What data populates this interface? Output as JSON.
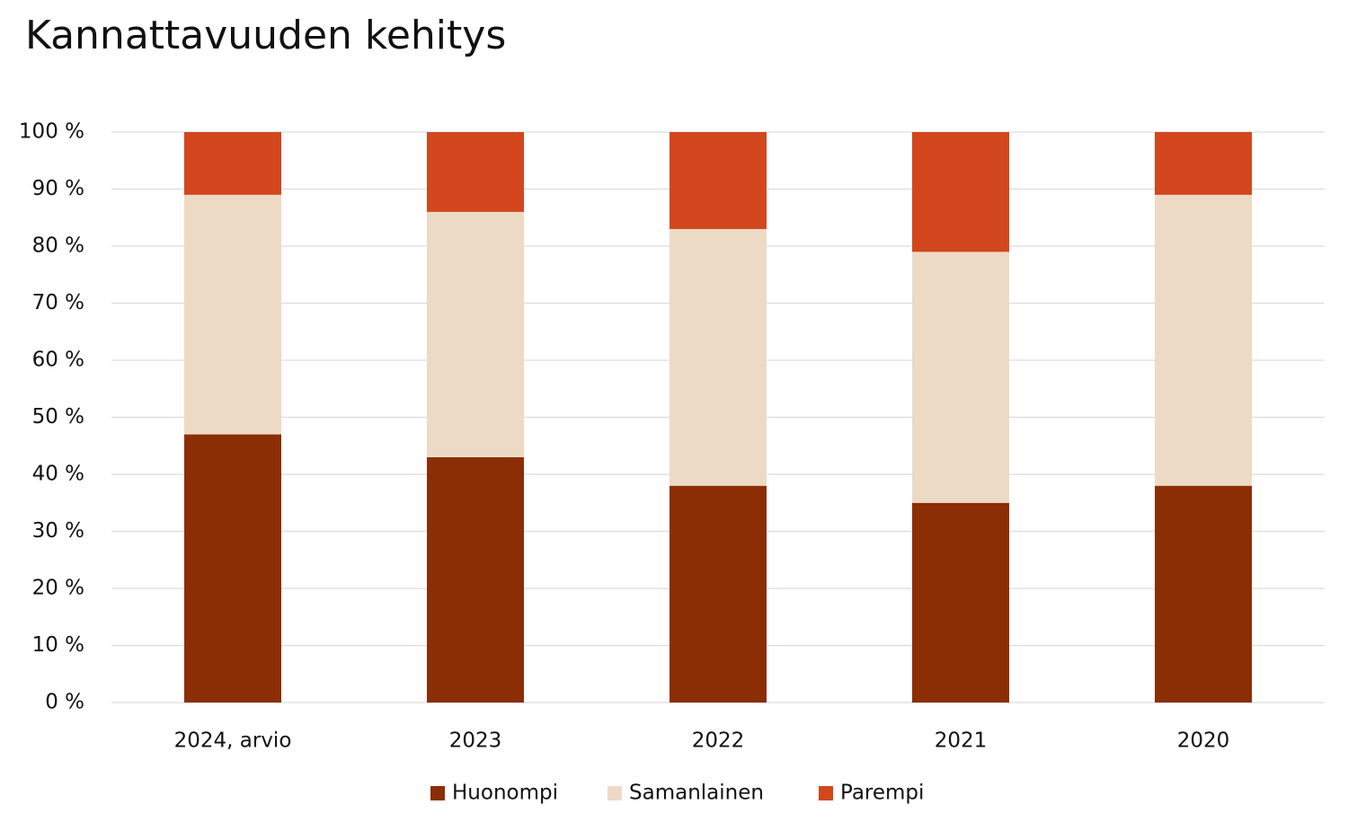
{
  "chart_data": {
    "type": "stacked_bar",
    "title": "Kannattavuuden kehitys",
    "categories": [
      "2024, arvio",
      "2023",
      "2022",
      "2021",
      "2020"
    ],
    "series": [
      {
        "name": "Huonompi",
        "color": "#8b2e06",
        "values": [
          47,
          43,
          38,
          35,
          38
        ]
      },
      {
        "name": "Samanlainen",
        "color": "#eddac5",
        "values": [
          42,
          43,
          45,
          44,
          51
        ]
      },
      {
        "name": "Parempi",
        "color": "#d2471e",
        "values": [
          11,
          14,
          17,
          21,
          11
        ]
      }
    ],
    "ylim": [
      0,
      100
    ],
    "yticks": [
      {
        "value": 0,
        "label": "0 %"
      },
      {
        "value": 10,
        "label": "10 %"
      },
      {
        "value": 20,
        "label": "20 %"
      },
      {
        "value": 30,
        "label": "30 %"
      },
      {
        "value": 40,
        "label": "40 %"
      },
      {
        "value": 50,
        "label": "50 %"
      },
      {
        "value": 60,
        "label": "60 %"
      },
      {
        "value": 70,
        "label": "70 %"
      },
      {
        "value": 80,
        "label": "80 %"
      },
      {
        "value": 90,
        "label": "90 %"
      },
      {
        "value": 100,
        "label": "100 %"
      }
    ],
    "grid": true,
    "legend": "bottom"
  }
}
